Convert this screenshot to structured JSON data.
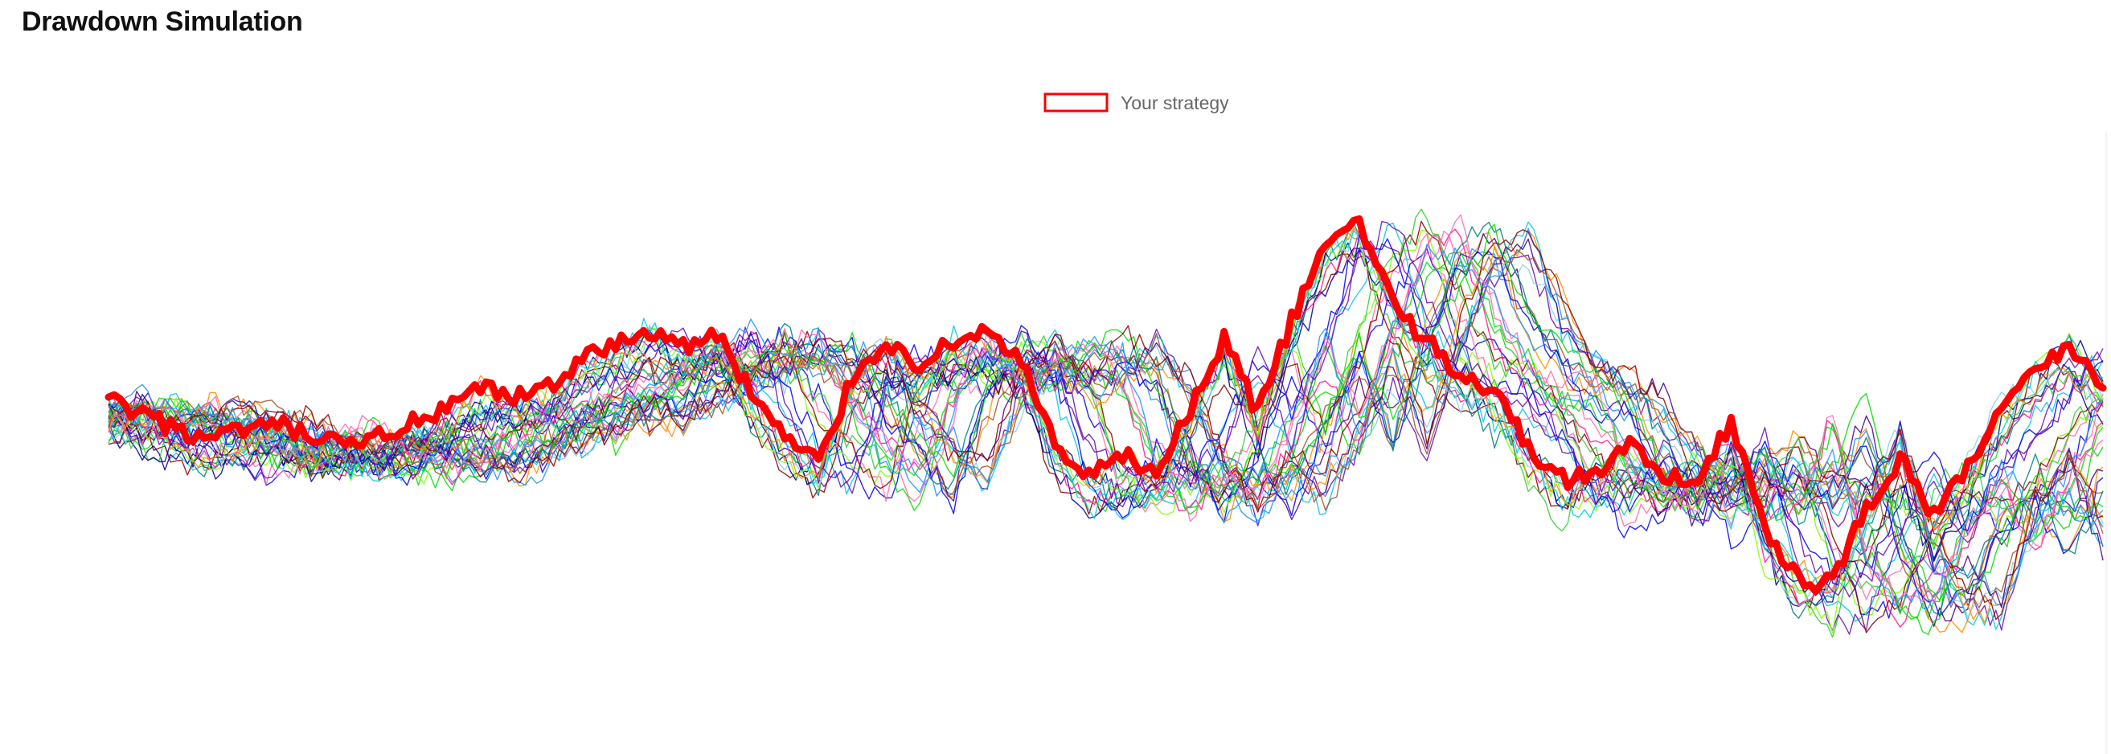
{
  "page": {
    "title": "Drawdown Simulation"
  },
  "chart_data": {
    "type": "line",
    "title": "",
    "xlabel": "",
    "ylabel": "",
    "grid": false,
    "axes_visible": false,
    "legend": {
      "placement": "top-center",
      "entries": [
        {
          "label": "Your strategy",
          "color": "#ff0000",
          "style": "outlined-box"
        }
      ]
    },
    "highlight": {
      "name": "Your strategy",
      "color": "#ff0000",
      "values": [
        0.78,
        0.5,
        0.3,
        0.12,
        0.26,
        0.36,
        0.15,
        0.0,
        0.19,
        0.39,
        0.58,
        0.97,
        0.78,
        1.0,
        1.43,
        1.66,
        1.92,
        1.63,
        1.84,
        0.92,
        0.15,
        -0.25,
        1.13,
        1.73,
        1.34,
        1.72,
        1.93,
        1.39,
        0.0,
        -0.52,
        -0.14,
        -0.42,
        0.58,
        1.77,
        0.56,
        2.06,
        3.3,
        3.67,
        2.39,
        1.71,
        1.2,
        0.96,
        0.0,
        -0.52,
        -0.42,
        0.08,
        -0.58,
        -0.43,
        0.41,
        -1.34,
        -2.2,
        -2.19,
        -0.97,
        -0.21,
        -1.09,
        -0.31,
        0.62,
        1.2,
        1.68,
        0.97
      ]
    },
    "colors": [
      "#00c8e8",
      "#0000ee",
      "#00dd00",
      "#6a0dad",
      "#8b0000",
      "#ff69b4",
      "#ff8c00",
      "#1e90ff",
      "#00008b",
      "#7fff00",
      "#ff1493",
      "#4b0082",
      "#008080",
      "#a0522d",
      "#87ceeb",
      "#32cd32"
    ],
    "ensemble": {
      "steps": 60,
      "seeds": [
        11,
        23,
        37,
        41,
        53,
        67,
        71,
        83,
        97,
        101,
        113,
        127,
        131,
        149,
        151,
        163,
        173,
        181,
        191,
        199,
        211,
        223,
        227,
        239,
        241,
        251,
        263,
        271,
        281,
        293,
        307,
        311,
        317,
        331,
        347,
        353,
        359,
        367,
        373,
        379
      ]
    },
    "ylim": [
      -4.5,
      5.0
    ]
  }
}
